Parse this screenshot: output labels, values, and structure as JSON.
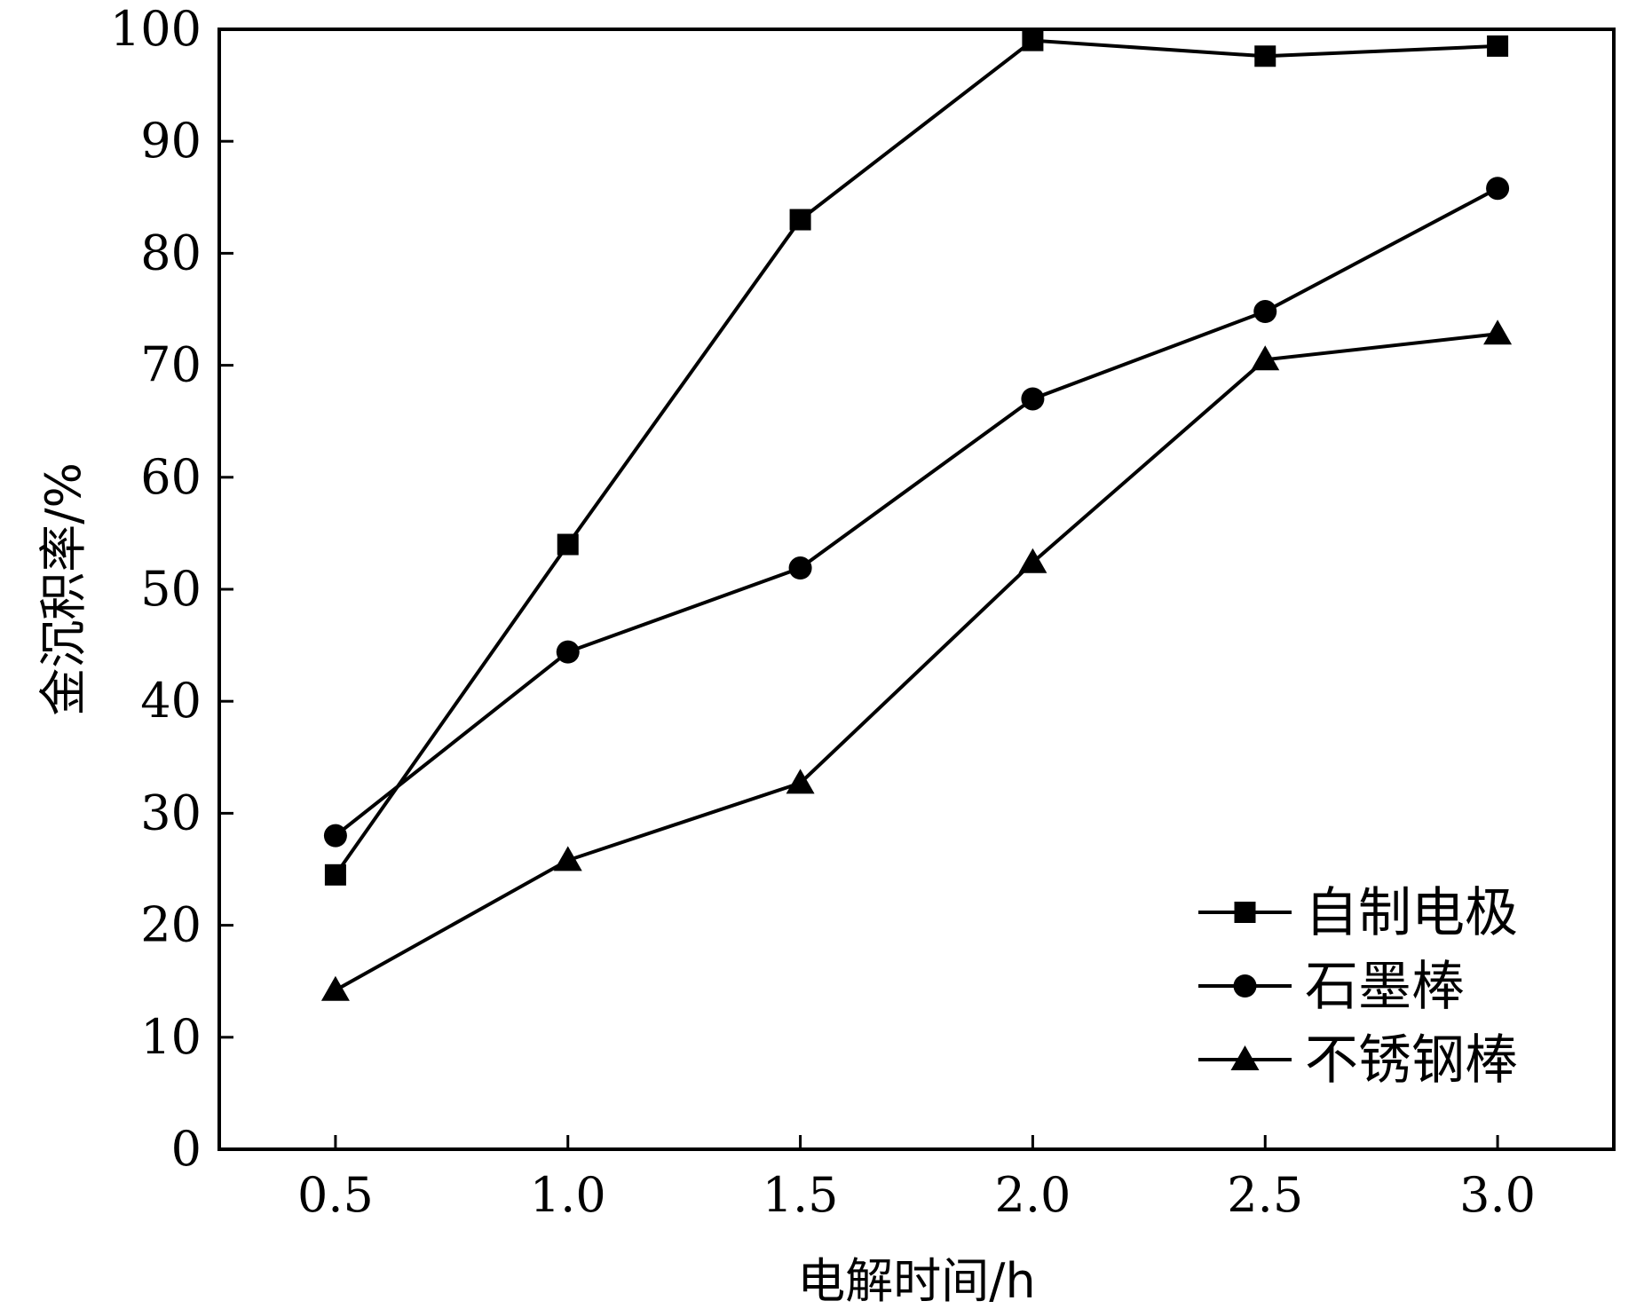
{
  "chart_data": {
    "type": "line",
    "title": "",
    "xlabel": "电解时间/h",
    "ylabel": "金沉积率/%",
    "x": [
      0.5,
      1.0,
      1.5,
      2.0,
      2.5,
      3.0
    ],
    "x_tick_labels": [
      "0.5",
      "1.0",
      "1.5",
      "2.0",
      "2.5",
      "3.0"
    ],
    "y_ticks": [
      0,
      10,
      20,
      30,
      40,
      50,
      60,
      70,
      80,
      90,
      100
    ],
    "y_tick_labels": [
      "0",
      "10",
      "20",
      "30",
      "40",
      "50",
      "60",
      "70",
      "80",
      "90",
      "100"
    ],
    "xlim": [
      0.25,
      3.25
    ],
    "ylim": [
      0,
      100
    ],
    "grid": false,
    "legend_position": "bottom-right",
    "series": [
      {
        "name": "自制电极",
        "marker": "square",
        "values": [
          24.5,
          54.0,
          83.0,
          99.0,
          97.6,
          98.5
        ]
      },
      {
        "name": "石墨棒",
        "marker": "circle",
        "values": [
          28.0,
          44.4,
          51.9,
          67.0,
          74.8,
          85.8
        ]
      },
      {
        "name": "不锈钢棒",
        "marker": "triangle",
        "values": [
          14.2,
          25.8,
          32.7,
          52.4,
          70.5,
          72.8
        ]
      }
    ],
    "color": "#000000"
  }
}
